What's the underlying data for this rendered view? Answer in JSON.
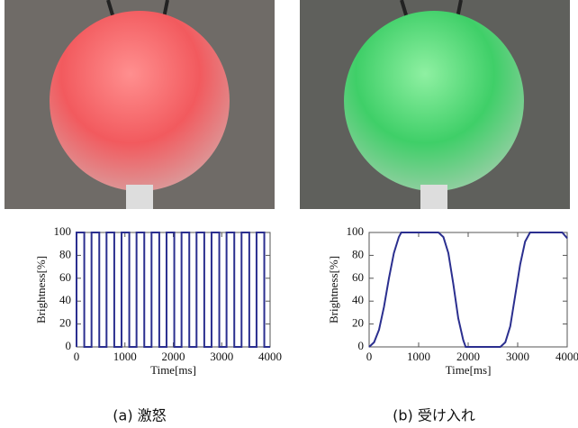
{
  "captions": [
    "(a) 激怒",
    "(b) 受け入れ"
  ],
  "chart_data": [
    {
      "type": "line",
      "xlabel": "Time[ms]",
      "ylabel": "Brightness[%]",
      "x": [
        0,
        0,
        160,
        160,
        310,
        310,
        470,
        470,
        620,
        620,
        780,
        780,
        930,
        930,
        1090,
        1090,
        1240,
        1240,
        1400,
        1400,
        1550,
        1550,
        1710,
        1710,
        1860,
        1860,
        2020,
        2020,
        2170,
        2170,
        2330,
        2330,
        2480,
        2480,
        2640,
        2640,
        2790,
        2790,
        2950,
        2950,
        3100,
        3100,
        3260,
        3260,
        3410,
        3410,
        3570,
        3570,
        3720,
        3720,
        3880,
        3880,
        4000
      ],
      "values": [
        0,
        100,
        100,
        0,
        0,
        100,
        100,
        0,
        0,
        100,
        100,
        0,
        0,
        100,
        100,
        0,
        0,
        100,
        100,
        0,
        0,
        100,
        100,
        0,
        0,
        100,
        100,
        0,
        0,
        100,
        100,
        0,
        0,
        100,
        100,
        0,
        0,
        100,
        100,
        0,
        0,
        100,
        100,
        0,
        0,
        100,
        100,
        0,
        0,
        100,
        100,
        0,
        0
      ],
      "color": "#2b2f8f",
      "xlim": [
        0,
        4000
      ],
      "ylim": [
        0,
        100
      ],
      "xticks": [
        0,
        1000,
        2000,
        3000,
        4000
      ],
      "yticks": [
        0,
        20,
        40,
        60,
        80,
        100
      ]
    },
    {
      "type": "line",
      "xlabel": "Time[ms]",
      "ylabel": "Brightness[%]",
      "x": [
        0,
        100,
        200,
        300,
        400,
        500,
        600,
        650,
        1400,
        1500,
        1600,
        1700,
        1800,
        1900,
        1950,
        2650,
        2750,
        2850,
        2950,
        3050,
        3150,
        3250,
        3900,
        4000
      ],
      "values": [
        0,
        4,
        15,
        35,
        60,
        82,
        96,
        100,
        100,
        96,
        82,
        55,
        25,
        6,
        0,
        0,
        4,
        18,
        45,
        72,
        92,
        100,
        100,
        95
      ],
      "color": "#2b2f8f",
      "xlim": [
        0,
        4000
      ],
      "ylim": [
        0,
        100
      ],
      "xticks": [
        0,
        1000,
        2000,
        3000,
        4000
      ],
      "yticks": [
        0,
        20,
        40,
        60,
        80,
        100
      ]
    }
  ]
}
